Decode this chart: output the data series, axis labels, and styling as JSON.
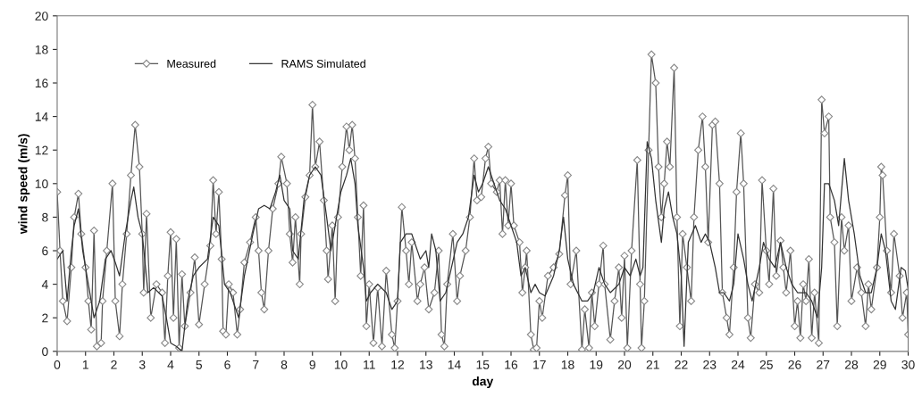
{
  "chart_data": {
    "type": "line",
    "xlabel": "day",
    "ylabel": "wind speed (m/s)",
    "xlim": [
      0,
      30
    ],
    "ylim": [
      0,
      20
    ],
    "xticks": [
      0,
      1,
      2,
      3,
      4,
      5,
      6,
      7,
      8,
      9,
      10,
      11,
      12,
      13,
      14,
      15,
      16,
      17,
      18,
      19,
      20,
      21,
      22,
      23,
      24,
      25,
      26,
      27,
      28,
      29,
      30
    ],
    "yticks": [
      0,
      2,
      4,
      6,
      8,
      10,
      12,
      14,
      16,
      18,
      20
    ],
    "grid": false,
    "legend": "top left",
    "series": [
      {
        "name": "Measured",
        "color": "#555555",
        "marker": "diamond",
        "x": [
          0,
          0.1,
          0.2,
          0.35,
          0.5,
          0.6,
          0.75,
          0.85,
          1.0,
          1.1,
          1.2,
          1.3,
          1.4,
          1.55,
          1.6,
          1.75,
          1.95,
          2.05,
          2.2,
          2.3,
          2.45,
          2.6,
          2.75,
          2.9,
          3.0,
          3.05,
          3.15,
          3.3,
          3.5,
          3.7,
          3.8,
          3.9,
          4.0,
          4.1,
          4.2,
          4.3,
          4.4,
          4.5,
          4.7,
          4.85,
          5.0,
          5.2,
          5.4,
          5.5,
          5.6,
          5.7,
          5.8,
          5.85,
          5.95,
          6.05,
          6.2,
          6.35,
          6.45,
          6.6,
          6.8,
          7.0,
          7.1,
          7.2,
          7.3,
          7.45,
          7.6,
          7.8,
          7.9,
          8.1,
          8.2,
          8.3,
          8.4,
          8.55,
          8.6,
          8.75,
          8.9,
          9.0,
          9.1,
          9.25,
          9.4,
          9.5,
          9.55,
          9.7,
          9.8,
          9.9,
          10.05,
          10.2,
          10.3,
          10.4,
          10.5,
          10.6,
          10.7,
          10.8,
          10.9,
          11.0,
          11.15,
          11.3,
          11.45,
          11.6,
          11.8,
          11.9,
          12.0,
          12.15,
          12.3,
          12.4,
          12.5,
          12.7,
          12.8,
          12.95,
          13.1,
          13.3,
          13.45,
          13.55,
          13.65,
          13.75,
          13.95,
          14.1,
          14.2,
          14.4,
          14.55,
          14.7,
          14.8,
          14.95,
          15.1,
          15.2,
          15.3,
          15.5,
          15.6,
          15.7,
          15.8,
          15.9,
          16.0,
          16.1,
          16.3,
          16.4,
          16.5,
          16.55,
          16.7,
          16.8,
          16.9,
          17.0,
          17.1,
          17.3,
          17.5,
          17.7,
          17.9,
          18.0,
          18.1,
          18.3,
          18.5,
          18.6,
          18.75,
          18.85,
          18.95,
          19.1,
          19.25,
          19.3,
          19.5,
          19.65,
          19.8,
          19.9,
          20.0,
          20.1,
          20.25,
          20.45,
          20.55,
          20.6,
          20.7,
          20.85,
          20.95,
          21.1,
          21.2,
          21.3,
          21.4,
          21.5,
          21.6,
          21.75,
          21.85,
          21.95,
          22.05,
          22.2,
          22.35,
          22.45,
          22.6,
          22.75,
          22.85,
          22.95,
          23.1,
          23.2,
          23.35,
          23.45,
          23.6,
          23.7,
          23.85,
          23.95,
          24.1,
          24.2,
          24.35,
          24.45,
          24.6,
          24.75,
          24.85,
          25.0,
          25.1,
          25.25,
          25.35,
          25.5,
          25.6,
          25.7,
          25.85,
          26.0,
          26.1,
          26.2,
          26.3,
          26.4,
          26.5,
          26.6,
          26.7,
          26.85,
          26.95,
          27.05,
          27.2,
          27.25,
          27.4,
          27.5,
          27.65,
          27.75,
          27.9,
          28.0,
          28.2,
          28.35,
          28.5,
          28.6,
          28.7,
          28.9,
          29.0,
          29.05,
          29.1,
          29.25,
          29.4,
          29.5,
          29.7,
          29.8,
          29.95,
          30.0
        ],
        "values": [
          9.5,
          6,
          3,
          1.8,
          5,
          8,
          9.4,
          7,
          5,
          3,
          1.3,
          7.2,
          0.3,
          0.5,
          3,
          6,
          10,
          3,
          0.9,
          4,
          7,
          10.5,
          13.5,
          11,
          7,
          3.5,
          8.2,
          2,
          4,
          3.5,
          0.5,
          4.5,
          7.1,
          2,
          6.7,
          0.2,
          4.6,
          1.5,
          3.5,
          5.6,
          1.6,
          4,
          6.3,
          10.2,
          7,
          9.5,
          5.5,
          1.2,
          1.0,
          4,
          3.5,
          1.0,
          2.5,
          5.3,
          6.5,
          8,
          6,
          3.5,
          2.5,
          6,
          8.5,
          10,
          11.6,
          10,
          7,
          5.3,
          8,
          4,
          7,
          9.2,
          10.5,
          14.7,
          11,
          12.5,
          9,
          6,
          4.3,
          7.5,
          3,
          8,
          11,
          13.4,
          12,
          13.5,
          11.5,
          8,
          4.5,
          8.7,
          1.5,
          4,
          0.5,
          3.8,
          0.3,
          4.8,
          1.0,
          0.2,
          3,
          8.6,
          6,
          4,
          6.5,
          3,
          4,
          5,
          2.5,
          3.5,
          6,
          1,
          0.3,
          4,
          7,
          3,
          4.5,
          6,
          8,
          11.5,
          9,
          9.2,
          11.5,
          12.2,
          10,
          9.5,
          10.2,
          7,
          10.2,
          7.5,
          10,
          7.5,
          6.5,
          3.5,
          5,
          6,
          1,
          0.1,
          0.2,
          3,
          2,
          4.5,
          5,
          5.8,
          9.3,
          10.5,
          4,
          6,
          0.1,
          2.5,
          0.2,
          3.5,
          1.5,
          4,
          6.3,
          4,
          0.7,
          3,
          5,
          2,
          5.7,
          0.2,
          6,
          11.4,
          4,
          0.2,
          3,
          12,
          17.7,
          16,
          11,
          8,
          10,
          12.5,
          11,
          16.9,
          8,
          1.5,
          7,
          5,
          3,
          8,
          12,
          14,
          11,
          6.5,
          13.5,
          13.7,
          10,
          3.5,
          2,
          1,
          5,
          9.5,
          13,
          10,
          2,
          0.8,
          4,
          3.5,
          10.2,
          6,
          4,
          9.7,
          4.5,
          6.6,
          5,
          3.5,
          6,
          1.5,
          3,
          0.8,
          4,
          3,
          5.5,
          0.8,
          3.5,
          0.5,
          15,
          13,
          14,
          8,
          6.5,
          1.5,
          8,
          6,
          7.5,
          3,
          5,
          3.5,
          1.5,
          4,
          2.5,
          5,
          8,
          11,
          10.5,
          6,
          3.5,
          7,
          4.5,
          2,
          3.5,
          1.0
        ]
      },
      {
        "name": "RAMS Simulated",
        "color": "#333333",
        "marker": "none",
        "x": [
          0,
          0.2,
          0.35,
          0.5,
          0.6,
          0.75,
          0.9,
          1.1,
          1.3,
          1.5,
          1.7,
          1.9,
          2.05,
          2.2,
          2.4,
          2.6,
          2.7,
          2.85,
          3.0,
          3.2,
          3.4,
          3.7,
          3.85,
          4.0,
          4.2,
          4.4,
          4.6,
          4.8,
          5.0,
          5.3,
          5.5,
          5.7,
          5.9,
          6.1,
          6.4,
          6.6,
          6.9,
          7.1,
          7.3,
          7.5,
          7.7,
          7.85,
          8.0,
          8.2,
          8.3,
          8.5,
          8.7,
          8.9,
          9.1,
          9.3,
          9.5,
          9.65,
          9.8,
          10.0,
          10.2,
          10.35,
          10.5,
          10.6,
          10.8,
          10.9,
          11.05,
          11.3,
          11.6,
          11.8,
          12.0,
          12.1,
          12.3,
          12.5,
          12.8,
          13.0,
          13.1,
          13.2,
          13.35,
          13.5,
          13.7,
          13.9,
          14.1,
          14.3,
          14.5,
          14.7,
          14.85,
          15.0,
          15.2,
          15.4,
          15.6,
          15.8,
          16.0,
          16.2,
          16.35,
          16.5,
          16.7,
          16.85,
          17.0,
          17.2,
          17.5,
          17.7,
          17.85,
          18.0,
          18.2,
          18.5,
          18.7,
          18.9,
          19.1,
          19.3,
          19.5,
          19.8,
          20.0,
          20.2,
          20.4,
          20.55,
          20.65,
          20.8,
          20.95,
          21.1,
          21.3,
          21.4,
          21.55,
          21.7,
          21.85,
          22.0,
          22.1,
          22.25,
          22.5,
          22.7,
          22.85,
          23.0,
          23.2,
          23.35,
          23.5,
          23.7,
          23.85,
          24.0,
          24.2,
          24.35,
          24.5,
          24.75,
          24.9,
          25.1,
          25.3,
          25.5,
          25.7,
          25.9,
          26.1,
          26.4,
          26.6,
          26.8,
          26.95,
          27.05,
          27.2,
          27.4,
          27.55,
          27.75,
          27.9,
          28.1,
          28.3,
          28.5,
          28.7,
          28.9,
          29.05,
          29.2,
          29.4,
          29.55,
          29.75,
          29.9,
          30.0
        ],
        "values": [
          5.5,
          6,
          3,
          6,
          7.5,
          8.5,
          6,
          4,
          2,
          3,
          5.5,
          6,
          5.3,
          4.5,
          7,
          9,
          9.8,
          8,
          7,
          3.5,
          3.8,
          3.3,
          2,
          0.5,
          0.3,
          0,
          3,
          4.5,
          5,
          5.5,
          8,
          7.5,
          4,
          3.5,
          2,
          4.5,
          7,
          8.5,
          8.7,
          8.5,
          9.5,
          10.5,
          9,
          8.5,
          6,
          5.5,
          9,
          10.5,
          11,
          10.5,
          8,
          6,
          7.5,
          9.5,
          10.5,
          11.5,
          10,
          7.5,
          5,
          3,
          3.5,
          4,
          3.5,
          2.5,
          3,
          6.5,
          7,
          7,
          5.5,
          6,
          5,
          7,
          6,
          3,
          3.5,
          5,
          6.5,
          7,
          8,
          10.5,
          9.5,
          10,
          11,
          10,
          9,
          8.5,
          7.5,
          6.5,
          4.5,
          5,
          3.5,
          4,
          3.5,
          3.3,
          4.5,
          6,
          8,
          5.5,
          4,
          3,
          3,
          3.5,
          5,
          4,
          3.5,
          4,
          5,
          4.5,
          5.5,
          4.5,
          5,
          12.5,
          11.5,
          9,
          6.5,
          8.5,
          9.5,
          8,
          7,
          4.5,
          0.3,
          6.5,
          7.5,
          6.5,
          7,
          6.5,
          5,
          3.5,
          3.5,
          3,
          4,
          7,
          5.5,
          4,
          3,
          5,
          6.5,
          5.5,
          5,
          6.5,
          5,
          4,
          3.5,
          3.5,
          3,
          2,
          5,
          10,
          10,
          9,
          7.5,
          11.5,
          9,
          7,
          4.5,
          3.5,
          3.5,
          5,
          7,
          6,
          3,
          2.5,
          5,
          4.8,
          3.7
        ]
      }
    ]
  }
}
